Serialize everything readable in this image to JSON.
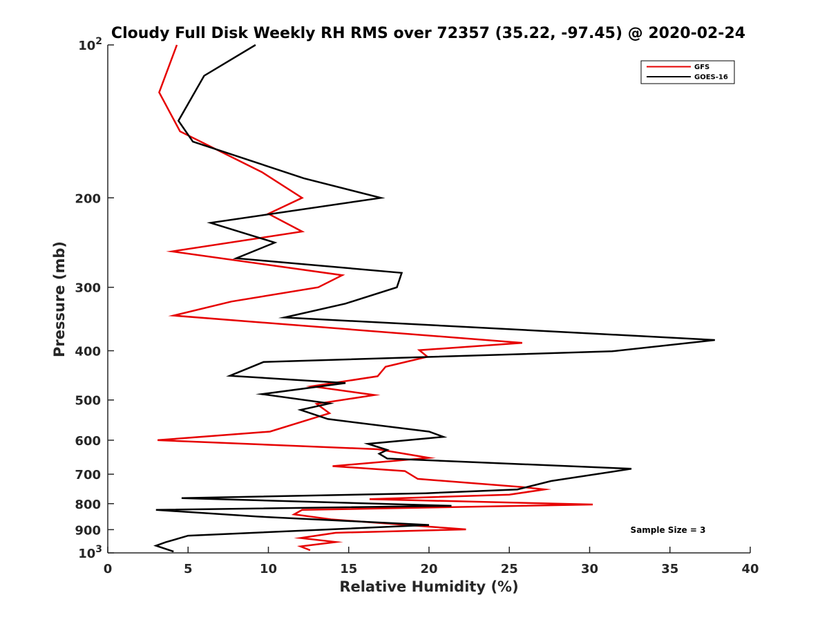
{
  "chart_data": {
    "type": "line",
    "title": "Cloudy Full Disk Weekly RH RMS over 72357 (35.22, -97.45) @ 2020-02-24",
    "xlabel": "Relative Humidity (%)",
    "ylabel": "Pressure (mb)",
    "xlim": [
      0,
      40
    ],
    "ylim": [
      100,
      1000
    ],
    "y_scale": "log",
    "y_reversed": true,
    "grid": false,
    "legend_position": "top-right",
    "x_ticks": [
      "0",
      "5",
      "10",
      "15",
      "20",
      "25",
      "30",
      "35",
      "40"
    ],
    "y_ticks": [
      {
        "value": 100,
        "base": "10",
        "exp": "2"
      },
      {
        "value": 200,
        "label": "200"
      },
      {
        "value": 300,
        "label": "300"
      },
      {
        "value": 400,
        "label": "400"
      },
      {
        "value": 500,
        "label": "500"
      },
      {
        "value": 600,
        "label": "600"
      },
      {
        "value": 700,
        "label": "700"
      },
      {
        "value": 800,
        "label": "800"
      },
      {
        "value": 900,
        "label": "900"
      },
      {
        "value": 1000,
        "base": "10",
        "exp": "3"
      }
    ],
    "annotation": "Sample Size = 3",
    "series": [
      {
        "name": "GFS",
        "color": "#e60000",
        "points": [
          [
            4.3,
            100
          ],
          [
            3.2,
            124
          ],
          [
            4.5,
            148
          ],
          [
            9.6,
            178
          ],
          [
            12.1,
            200
          ],
          [
            10.0,
            215
          ],
          [
            12.1,
            233
          ],
          [
            4.0,
            255
          ],
          [
            14.6,
            284
          ],
          [
            13.1,
            300
          ],
          [
            7.7,
            320
          ],
          [
            4.1,
            341
          ],
          [
            25.8,
            386
          ],
          [
            19.4,
            399
          ],
          [
            19.9,
            411
          ],
          [
            17.3,
            430
          ],
          [
            16.8,
            449
          ],
          [
            12.7,
            470
          ],
          [
            16.6,
            489
          ],
          [
            13.0,
            509
          ],
          [
            13.8,
            531
          ],
          [
            10.1,
            577
          ],
          [
            3.1,
            600
          ],
          [
            16.8,
            625
          ],
          [
            20.0,
            650
          ],
          [
            14.0,
            675
          ],
          [
            18.5,
            690
          ],
          [
            19.3,
            715
          ],
          [
            25.8,
            742
          ],
          [
            27.2,
            750
          ],
          [
            25.0,
            768
          ],
          [
            16.3,
            784
          ],
          [
            30.2,
            803
          ],
          [
            12.1,
            823
          ],
          [
            11.6,
            840
          ],
          [
            13.9,
            859
          ],
          [
            22.3,
            899
          ],
          [
            14.2,
            913
          ],
          [
            12.0,
            935
          ],
          [
            14.2,
            952
          ],
          [
            12.0,
            971
          ],
          [
            12.6,
            988
          ]
        ]
      },
      {
        "name": "GOES-16",
        "color": "#000000",
        "points": [
          [
            9.2,
            100
          ],
          [
            6.0,
            115
          ],
          [
            4.4,
            141
          ],
          [
            5.3,
            155
          ],
          [
            12.2,
            183
          ],
          [
            17.0,
            200
          ],
          [
            6.4,
            224
          ],
          [
            10.4,
            245
          ],
          [
            8.0,
            263
          ],
          [
            18.3,
            281
          ],
          [
            18.0,
            300
          ],
          [
            14.8,
            323
          ],
          [
            11.0,
            344
          ],
          [
            27.4,
            366
          ],
          [
            37.8,
            381
          ],
          [
            31.4,
            401
          ],
          [
            9.7,
            421
          ],
          [
            7.6,
            448
          ],
          [
            14.8,
            463
          ],
          [
            9.6,
            487
          ],
          [
            13.8,
            508
          ],
          [
            12.0,
            523
          ],
          [
            13.7,
            545
          ],
          [
            20.0,
            577
          ],
          [
            20.9,
            591
          ],
          [
            16.2,
            610
          ],
          [
            17.4,
            627
          ],
          [
            16.9,
            638
          ],
          [
            17.4,
            652
          ],
          [
            32.6,
            683
          ],
          [
            27.6,
            722
          ],
          [
            25.5,
            750
          ],
          [
            19.8,
            763
          ],
          [
            4.6,
            780
          ],
          [
            21.4,
            808
          ],
          [
            3.0,
            823
          ],
          [
            9.3,
            848
          ],
          [
            20.0,
            881
          ],
          [
            5.0,
            925
          ],
          [
            3.6,
            953
          ],
          [
            3.0,
            968
          ],
          [
            4.1,
            994
          ]
        ]
      }
    ]
  }
}
